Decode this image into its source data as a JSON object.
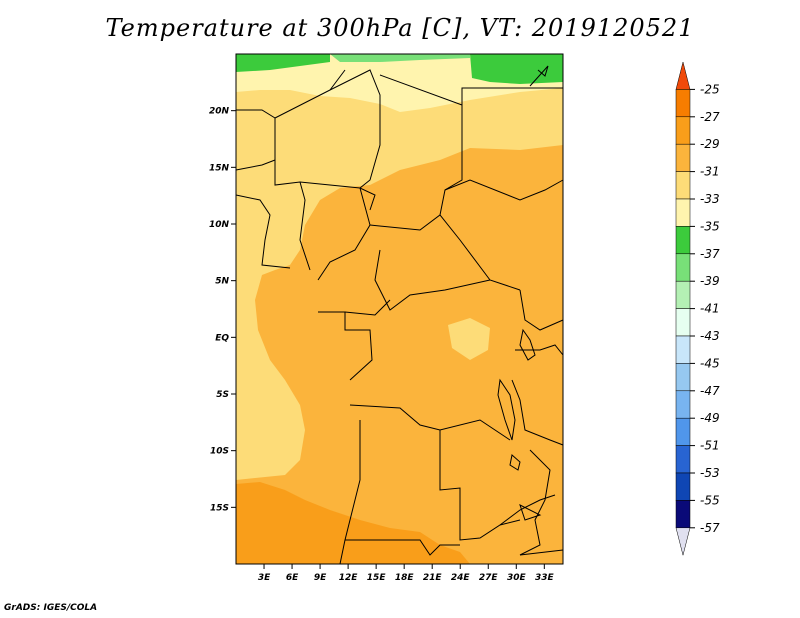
{
  "title": "Temperature at 300hPa [C], VT: 2019120521",
  "credit": "GrADS: IGES/COLA",
  "map": {
    "lon_range": [
      0,
      35
    ],
    "lat_range": [
      -20,
      25
    ],
    "lon_ticks": [
      {
        "value": 3,
        "label": "3E"
      },
      {
        "value": 6,
        "label": "6E"
      },
      {
        "value": 9,
        "label": "9E"
      },
      {
        "value": 12,
        "label": "12E"
      },
      {
        "value": 15,
        "label": "15E"
      },
      {
        "value": 18,
        "label": "18E"
      },
      {
        "value": 21,
        "label": "21E"
      },
      {
        "value": 24,
        "label": "24E"
      },
      {
        "value": 27,
        "label": "27E"
      },
      {
        "value": 30,
        "label": "30E"
      },
      {
        "value": 33,
        "label": "33E"
      }
    ],
    "lat_ticks": [
      {
        "value": 20,
        "label": "20N"
      },
      {
        "value": 15,
        "label": "15N"
      },
      {
        "value": 10,
        "label": "10N"
      },
      {
        "value": 5,
        "label": "5N"
      },
      {
        "value": 0,
        "label": "EQ"
      },
      {
        "value": -5,
        "label": "5S"
      },
      {
        "value": -10,
        "label": "10S"
      },
      {
        "value": -15,
        "label": "15S"
      }
    ]
  },
  "colorbar": {
    "levels": [
      "-25",
      "-27",
      "-29",
      "-31",
      "-33",
      "-35",
      "-37",
      "-39",
      "-41",
      "-43",
      "-45",
      "-47",
      "-49",
      "-51",
      "-53",
      "-55",
      "-57"
    ],
    "colors": [
      "#f04a0a",
      "#f77d00",
      "#f99e1a",
      "#fbb43c",
      "#fddc78",
      "#fff4ae",
      "#3ccb3c",
      "#78e078",
      "#b4f0b4",
      "#e6fff0",
      "#c8e6fa",
      "#96c8f0",
      "#78b4f0",
      "#5096eb",
      "#2864d2",
      "#0f46b4",
      "#0a0a78",
      "#e0e0f0"
    ]
  }
}
